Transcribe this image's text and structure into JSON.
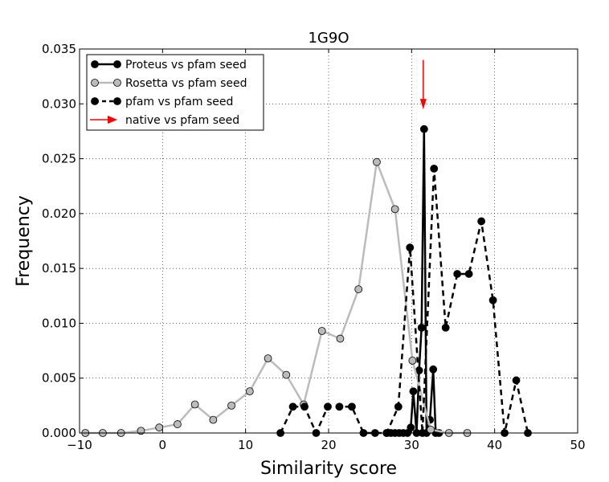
{
  "chart_data": {
    "type": "line",
    "title": "1G9O",
    "xlabel": "Similarity score",
    "ylabel": "Frequency",
    "xlim": [
      -10,
      50
    ],
    "ylim": [
      0,
      0.035
    ],
    "xticks": [
      -10,
      0,
      10,
      20,
      30,
      40,
      50
    ],
    "xtick_labels": [
      "−10",
      "0",
      "10",
      "20",
      "30",
      "40",
      "50"
    ],
    "yticks": [
      0.0,
      0.005,
      0.01,
      0.015,
      0.02,
      0.025,
      0.03,
      0.035
    ],
    "ytick_labels": [
      "0.000",
      "0.005",
      "0.010",
      "0.015",
      "0.020",
      "0.025",
      "0.030",
      "0.035"
    ],
    "grid": true,
    "legend_position": "top-left",
    "series": [
      {
        "name": "Proteus vs pfam seed",
        "color": "#000000",
        "marker_color": "#000000",
        "line_style": "solid",
        "x": [
          27.0,
          27.5,
          28.0,
          28.5,
          29.0,
          29.5,
          29.9,
          30.2,
          30.6,
          30.9,
          31.2,
          31.5,
          31.8,
          32.2,
          32.6,
          32.9,
          33.3
        ],
        "y": [
          0.0,
          0.0,
          0.0,
          0.0,
          0.0,
          0.0,
          0.0005,
          0.0038,
          0.0,
          0.0057,
          0.0096,
          0.0277,
          0.0,
          0.0012,
          0.0058,
          0.0,
          0.0
        ]
      },
      {
        "name": "Rosetta vs pfam seed",
        "color": "#bbbbbb",
        "marker_color": "#bbbbbb",
        "line_style": "solid",
        "x": [
          -9.3,
          -7.2,
          -5.0,
          -2.6,
          -0.4,
          1.8,
          3.9,
          6.1,
          8.3,
          10.5,
          12.7,
          14.9,
          17.0,
          19.2,
          21.4,
          23.6,
          25.8,
          28.0,
          30.1,
          32.3,
          34.5,
          36.7
        ],
        "y": [
          0.0,
          0.0,
          0.0,
          0.0002,
          0.0005,
          0.0008,
          0.0026,
          0.0012,
          0.0025,
          0.0038,
          0.0068,
          0.0053,
          0.0026,
          0.0093,
          0.0086,
          0.0131,
          0.0247,
          0.0204,
          0.0066,
          0.0003,
          0.0,
          0.0
        ]
      },
      {
        "name": "pfam vs pfam seed",
        "color": "#000000",
        "marker_color": "#000000",
        "line_style": "dashed",
        "x": [
          14.2,
          15.7,
          17.1,
          18.5,
          19.9,
          21.3,
          22.8,
          24.2,
          25.6,
          27.0,
          28.4,
          29.8,
          31.3,
          32.7,
          34.1,
          35.5,
          36.9,
          38.4,
          39.8,
          41.2,
          42.6,
          44.0
        ],
        "y": [
          0.0,
          0.0024,
          0.0024,
          0.0,
          0.0024,
          0.0024,
          0.0024,
          0.0,
          0.0,
          0.0,
          0.0024,
          0.0169,
          0.0,
          0.0241,
          0.0096,
          0.0145,
          0.0145,
          0.0193,
          0.0121,
          0.0,
          0.0048,
          0.0
        ]
      }
    ],
    "annotations": [
      {
        "name": "native vs pfam seed",
        "type": "arrow",
        "color": "#ff0000",
        "x": 31.4,
        "y_from": 0.034,
        "y_to": 0.0295
      }
    ]
  }
}
